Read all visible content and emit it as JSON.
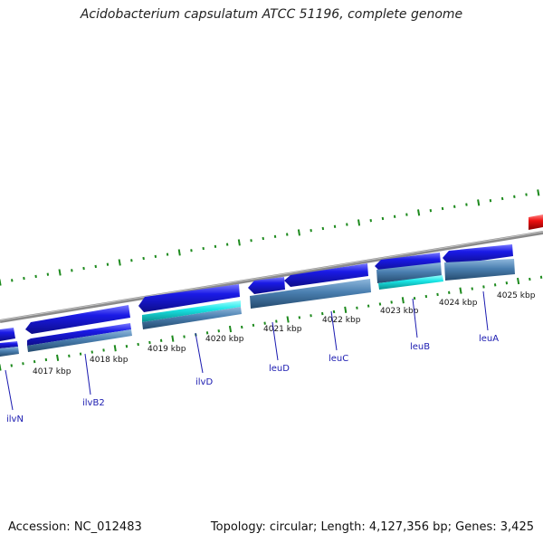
{
  "title": "Acidobacterium capsulatum ATCC 51196, complete genome",
  "footer": {
    "accession": "Accession: NC_012483",
    "topology": "Topology: circular; Length: 4,127,356 bp; Genes: 3,425"
  },
  "colors": {
    "backbone": "#8a8a8a",
    "gene_blue": "#1a1ae6",
    "gene_cyan": "#19e6e6",
    "gene_red": "#ee1111",
    "steel": "#4a7fb0",
    "tick_green": "#1d8a1d",
    "label_blue": "#1a1ab0"
  },
  "kbp_labels": [
    "4017 kbp",
    "4018 kbp",
    "4019 kbp",
    "4020 kbp",
    "4021 kbp",
    "4022 kbp",
    "4023 kbp",
    "4024 kbp",
    "4025 kbp"
  ],
  "genes": [
    "ilvN",
    "ilvB2",
    "ilvD",
    "leuD",
    "leuC",
    "leuB",
    "leuA"
  ]
}
